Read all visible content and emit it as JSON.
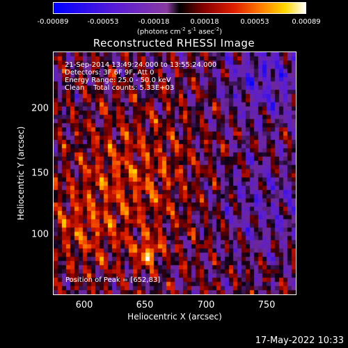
{
  "colorbar": {
    "ticks": [
      "-0.00089",
      "-0.00053",
      "-0.00018",
      "0.00018",
      "0.00053",
      "0.00089"
    ],
    "unit_pre": "(photons cm",
    "unit_exp1": "-2",
    "unit_mid": " s",
    "unit_exp2": "-1",
    "unit_mid2": " asec",
    "unit_exp3": "-2",
    "unit_post": ")"
  },
  "chart_data": {
    "type": "heatmap",
    "title": "Reconstructed RHESSI Image",
    "xlabel": "Heliocentric X (arcsec)",
    "ylabel": "Heliocentric Y (arcsec)",
    "xlim": [
      578,
      768
    ],
    "ylim": [
      51,
      241
    ],
    "x_ticks": [
      "600",
      "650",
      "700",
      "750"
    ],
    "y_ticks": [
      "100",
      "150",
      "200"
    ],
    "annotations": [
      "21-Sep-2014 13:49:24.000 to 13:55:24.000",
      "Detectors: 3F 6F 9F, Att 0",
      "Energy Range: 25.0 - 50.0 keV",
      "Clean    Total counts: 5.33E+03"
    ],
    "peak_label": "Position of Peak = [652,83]",
    "peak": [
      652,
      83
    ],
    "value_range": [
      -0.00089,
      0.00089
    ],
    "colormap": "blue-purple-black-red-yellow-white"
  },
  "timestamp": "17-May-2022 10:33"
}
